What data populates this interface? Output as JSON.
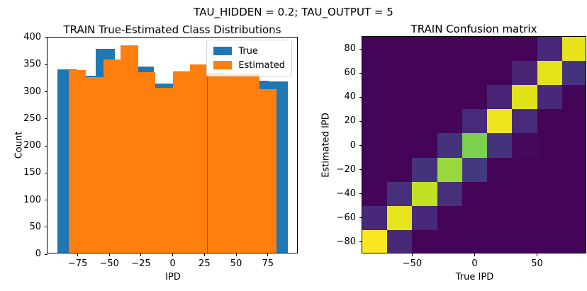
{
  "figure": {
    "suptitle": "TAU_HIDDEN = 0.2; TAU_OUTPUT = 5",
    "background": "#ffffff"
  },
  "colors": {
    "true_series": "#1f77b4",
    "estimated_series": "#ff7f0e",
    "axis": "#000000",
    "legend_border": "#d2d2d2"
  },
  "chart_data": [
    {
      "type": "bar",
      "subtype": "overlapping-histogram",
      "title": "TRAIN True-Estimated Class Distributions",
      "xlabel": "IPD",
      "ylabel": "Count",
      "xlim": [
        -98.8,
        99.2
      ],
      "ylim": [
        0,
        400
      ],
      "xticks": [
        -75,
        -50,
        -25,
        0,
        25,
        50,
        75
      ],
      "yticks": [
        0,
        50,
        100,
        150,
        200,
        250,
        300,
        350,
        400
      ],
      "grid": false,
      "legend_position": "upper right",
      "legend": [
        {
          "label": "True",
          "color": "#1f77b4"
        },
        {
          "label": "Estimated",
          "color": "#ff7f0e"
        }
      ],
      "series": [
        {
          "name": "True",
          "color": "#1f77b4",
          "bin_start": -91,
          "bin_width": 15.1667,
          "counts": [
            338,
            327,
            376,
            345,
            344,
            313,
            335,
            325,
            325,
            325,
            318,
            317
          ]
        },
        {
          "name": "Estimated",
          "color": "#ff7f0e",
          "bin_start": -82,
          "bin_width": 13.6667,
          "counts": [
            337,
            324,
            357,
            383,
            334,
            305,
            333,
            348,
            332,
            330,
            331,
            302
          ]
        }
      ]
    },
    {
      "type": "heatmap",
      "subtype": "confusion-matrix",
      "title": "TRAIN Confusion matrix",
      "xlabel": "True IPD",
      "ylabel": "Estimated IPD",
      "extent": [
        -90,
        90,
        -90,
        90
      ],
      "xticks": [
        -50,
        0,
        50
      ],
      "yticks": [
        80,
        60,
        40,
        20,
        0,
        -20,
        -40,
        -60,
        -80
      ],
      "classes": [
        -80,
        -60,
        -40,
        -20,
        0,
        20,
        40,
        60,
        80
      ],
      "colormap": "viridis",
      "colormap_stops": [
        "#440154",
        "#482878",
        "#3e4989",
        "#31688e",
        "#26828e",
        "#1f9e89",
        "#35b779",
        "#6ece58",
        "#b5de2b",
        "#dfe318",
        "#fde725"
      ],
      "rows_top_to_bottom": [
        80,
        60,
        40,
        20,
        0,
        -20,
        -40,
        -60,
        -80
      ],
      "cols_left_to_right": [
        -80,
        -60,
        -40,
        -20,
        0,
        20,
        40,
        60,
        80
      ],
      "values": [
        [
          0.01,
          0.01,
          0.01,
          0.01,
          0.01,
          0.01,
          0.01,
          0.1,
          0.92
        ],
        [
          0.01,
          0.01,
          0.01,
          0.01,
          0.01,
          0.01,
          0.09,
          0.91,
          0.13
        ],
        [
          0.01,
          0.01,
          0.01,
          0.01,
          0.01,
          0.09,
          0.9,
          0.1,
          0.01
        ],
        [
          0.01,
          0.01,
          0.01,
          0.01,
          0.11,
          0.95,
          0.11,
          0.01,
          0.01
        ],
        [
          0.01,
          0.01,
          0.01,
          0.13,
          0.72,
          0.13,
          0.02,
          0.01,
          0.01
        ],
        [
          0.01,
          0.01,
          0.13,
          0.76,
          0.15,
          0.01,
          0.01,
          0.01,
          0.01
        ],
        [
          0.01,
          0.12,
          0.83,
          0.12,
          0.01,
          0.01,
          0.01,
          0.01,
          0.01
        ],
        [
          0.1,
          0.93,
          0.1,
          0.01,
          0.01,
          0.01,
          0.01,
          0.01,
          0.01
        ],
        [
          0.99,
          0.1,
          0.01,
          0.01,
          0.01,
          0.01,
          0.01,
          0.01,
          0.01
        ]
      ]
    }
  ]
}
